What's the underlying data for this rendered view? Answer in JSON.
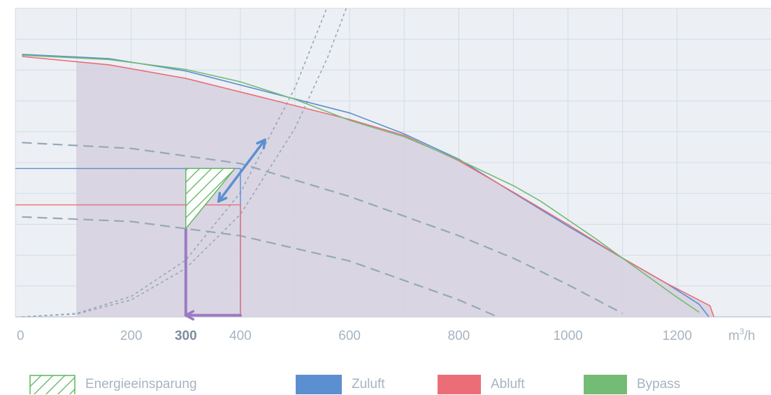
{
  "chart_data": {
    "type": "line",
    "xlabel": "m³/h",
    "xlim": [
      0,
      1300
    ],
    "ylim": [
      0,
      100
    ],
    "x_ticks": [
      {
        "value": 0,
        "label": "0"
      },
      {
        "value": 200,
        "label": "200"
      },
      {
        "value": 300,
        "label": "300",
        "bold": true
      },
      {
        "value": 400,
        "label": "400"
      },
      {
        "value": 600,
        "label": "600"
      },
      {
        "value": 800,
        "label": "800"
      },
      {
        "value": 1000,
        "label": "1000"
      },
      {
        "value": 1200,
        "label": "1200"
      }
    ],
    "x_grid": [
      100,
      200,
      300,
      400,
      500,
      600,
      700,
      800,
      900,
      1000,
      1100,
      1200
    ],
    "y_grid": [
      10,
      20,
      30,
      40,
      50,
      60,
      70,
      80,
      90
    ],
    "grid": true,
    "operating_range_start": 100,
    "series": [
      {
        "name": "Zuluft",
        "color": "#5b8fd0",
        "points": [
          [
            0,
            85.1
          ],
          [
            160,
            83.7
          ],
          [
            300,
            79.7
          ],
          [
            450,
            72.9
          ],
          [
            600,
            66.1
          ],
          [
            700,
            59.3
          ],
          [
            800,
            51.1
          ],
          [
            900,
            40.2
          ],
          [
            1000,
            29.4
          ],
          [
            1100,
            19.0
          ],
          [
            1180,
            10.9
          ],
          [
            1240,
            4.1
          ],
          [
            1258,
            0
          ]
        ]
      },
      {
        "name": "Abluft",
        "color": "#ea6d78",
        "points": [
          [
            0,
            84.4
          ],
          [
            160,
            81.7
          ],
          [
            300,
            77.3
          ],
          [
            450,
            70.7
          ],
          [
            600,
            64.0
          ],
          [
            700,
            58.8
          ],
          [
            800,
            50.6
          ],
          [
            900,
            40.4
          ],
          [
            1000,
            29.9
          ],
          [
            1100,
            19.0
          ],
          [
            1180,
            10.9
          ],
          [
            1260,
            3.6
          ],
          [
            1267,
            0
          ]
        ]
      },
      {
        "name": "Bypass",
        "color": "#74bb76",
        "points": [
          [
            0,
            84.8
          ],
          [
            160,
            83.4
          ],
          [
            300,
            80.2
          ],
          [
            400,
            76.2
          ],
          [
            500,
            70.5
          ],
          [
            600,
            63.7
          ],
          [
            650,
            61.0
          ],
          [
            700,
            58.4
          ],
          [
            800,
            50.9
          ],
          [
            900,
            42.5
          ],
          [
            950,
            37.5
          ],
          [
            1050,
            25.4
          ],
          [
            1100,
            19.0
          ],
          [
            1200,
            6.3
          ],
          [
            1240,
            1.5
          ]
        ]
      }
    ],
    "system_curves": [
      {
        "points": [
          [
            0,
            0
          ],
          [
            100,
            0.9
          ],
          [
            200,
            5.5
          ],
          [
            300,
            15.7
          ],
          [
            400,
            33.2
          ],
          [
            500,
            61.2
          ],
          [
            560,
            84.2
          ],
          [
            600,
            102.9
          ]
        ]
      },
      {
        "points": [
          [
            0,
            0
          ],
          [
            100,
            1.1
          ],
          [
            200,
            6.6
          ],
          [
            300,
            18.4
          ],
          [
            400,
            40.3
          ],
          [
            500,
            74.3
          ],
          [
            600,
            118.6
          ]
        ]
      }
    ],
    "fan_curves": [
      {
        "points": [
          [
            0,
            56.5
          ],
          [
            200,
            54.6
          ],
          [
            400,
            49.7
          ],
          [
            600,
            39.0
          ],
          [
            800,
            26.3
          ],
          [
            900,
            19.0
          ],
          [
            1000,
            10.4
          ],
          [
            1100,
            1.1
          ]
        ]
      },
      {
        "points": [
          [
            0,
            32.4
          ],
          [
            200,
            30.9
          ],
          [
            400,
            26.3
          ],
          [
            600,
            18.1
          ],
          [
            800,
            5.5
          ],
          [
            1000,
            -10.0
          ]
        ]
      }
    ],
    "reference_lines": [
      {
        "color": "#5b8fd0",
        "x_end": 400,
        "y": 48.1
      },
      {
        "color": "#ea6d78",
        "x_end": 400,
        "y": 36.3
      }
    ],
    "energy_saving_triangle": [
      [
        300,
        48.1
      ],
      [
        390,
        48.1
      ],
      [
        300,
        28.6
      ]
    ],
    "annotation_arrows": [
      {
        "from": [
          445,
          57.4
        ],
        "to": [
          360,
          37.4
        ],
        "color": "#5b8fd0",
        "double": true
      },
      {
        "from": [
          400,
          0.5
        ],
        "to": [
          300,
          0.5
        ],
        "color": "#9b7cc2",
        "double": false
      }
    ],
    "vertical_marker": {
      "x": 300,
      "y_top": 28.6,
      "color": "#9b7cc2"
    },
    "legend": [
      {
        "label": "Energieeinsparung",
        "kind": "hatch",
        "color": "#5ab55c"
      },
      {
        "label": "Zuluft",
        "kind": "fill",
        "color": "#5b8fd0"
      },
      {
        "label": "Abluft",
        "kind": "fill",
        "color": "#ea6d78"
      },
      {
        "label": "Bypass",
        "kind": "fill",
        "color": "#74bb76"
      }
    ]
  }
}
